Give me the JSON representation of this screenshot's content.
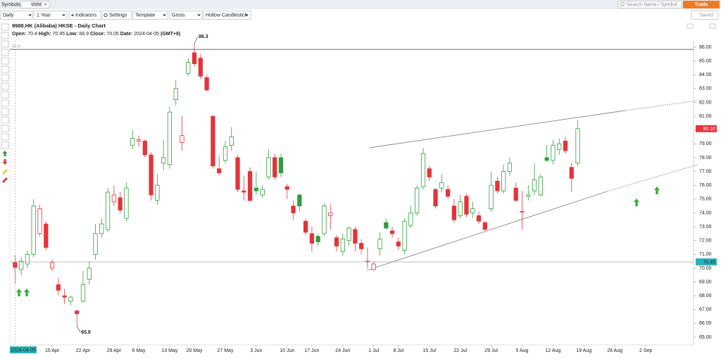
{
  "toolbar": {
    "symbols_label": "Symbols:",
    "symbol": "9988",
    "search_placeholder": "Search Name / Symbol",
    "trade": "Trade",
    "interval": "Daily",
    "range": "1 Year",
    "indicators": "Indicators",
    "settings": "Settings",
    "template": "Template",
    "scale": "Gross",
    "chart_style": "Hollow Candlestick",
    "saved": "Saved"
  },
  "chart_data": {
    "type": "candlestick",
    "title": "9988.HK (Alibaba) HKSE - Daily Chart",
    "info": [
      {
        "label": "Open:",
        "value": 70.4
      },
      {
        "label": "High:",
        "value": 70.95
      },
      {
        "label": "Low:",
        "value": 68.9
      },
      {
        "label": "Close:",
        "value": 70.05
      }
    ],
    "date_label": "Date:",
    "date": "2024-04-05",
    "timezone": "(GMT+8)",
    "categories": [
      null,
      null,
      null,
      null,
      null,
      null,
      "15 Apr",
      null,
      null,
      null,
      null,
      "22 Apr",
      null,
      null,
      null,
      null,
      "29 Apr",
      null,
      null,
      null,
      "6 May",
      null,
      null,
      null,
      null,
      "13 May",
      null,
      null,
      null,
      "20 May",
      null,
      null,
      null,
      null,
      "27 May",
      null,
      null,
      null,
      null,
      "3 Jun",
      null,
      null,
      null,
      null,
      "10 Jun",
      null,
      null,
      null,
      "17 Jun",
      null,
      null,
      null,
      null,
      "24 Jun",
      null,
      null,
      null,
      null,
      "1 Jul",
      null,
      null,
      null,
      "8 Jul",
      null,
      null,
      null,
      null,
      "15 Jul",
      null,
      null,
      null,
      null,
      "22 Jul",
      null,
      null,
      null,
      null,
      "29 Jul",
      null,
      null,
      null,
      null,
      "5 Aug",
      null,
      null,
      null,
      null,
      "12 Aug",
      null,
      null,
      null,
      null,
      "19 Aug",
      null,
      null,
      null,
      null,
      "26 Aug",
      null,
      null,
      null,
      null,
      "2 Sep",
      null,
      null,
      null,
      null,
      null,
      null,
      null
    ],
    "open": [
      70.4,
      69.9,
      70.3,
      71.0,
      72.5,
      73.2,
      70.0,
      68.8,
      68.0,
      67.6,
      66.9,
      67.6,
      69.2,
      71.0,
      72.5,
      72.8,
      74.8,
      75.1,
      73.6,
      78.9,
      79.2,
      79.2,
      78.2,
      74.9,
      77.6,
      77.5,
      82.2,
      79.1,
      84.1,
      85.6,
      85.2,
      83.8,
      81.0,
      77.2,
      77.8,
      78.9,
      78.0,
      75.6,
      77.0,
      75.8,
      75.3,
      76.6,
      78.0,
      78.0,
      75.9,
      74.5,
      75.3,
      73.4,
      72.5,
      72.3,
      72.5,
      73.8,
      72.2,
      71.2,
      72.0,
      72.8,
      71.8,
      70.5,
      69.9,
      71.4,
      73.3,
      72.7,
      71.9,
      71.3,
      73.1,
      74.0,
      75.9,
      77.2,
      75.7,
      75.8,
      75.7,
      74.5,
      73.8,
      75.2,
      74.0,
      73.8,
      73.3,
      74.3,
      76.3,
      75.6,
      77.0,
      75.8,
      74.1,
      75.2,
      75.6,
      75.3,
      78.0,
      77.8,
      78.6,
      79.2,
      77.3,
      77.6,
      null,
      null,
      null,
      null,
      null,
      null,
      null,
      null,
      null,
      null,
      null,
      null,
      null,
      null,
      null,
      null,
      null,
      null
    ],
    "high": [
      70.95,
      70.8,
      71.3,
      75.0,
      74.6,
      73.4,
      70.6,
      69.3,
      68.5,
      68.0,
      67.0,
      69.8,
      70.5,
      73.2,
      73.6,
      75.8,
      76.0,
      75.5,
      76.2,
      80.0,
      79.6,
      79.3,
      78.4,
      76.8,
      79.3,
      81.7,
      83.6,
      81.0,
      85.2,
      86.3,
      85.5,
      84.0,
      81.0,
      78.1,
      79.2,
      80.2,
      78.2,
      76.7,
      77.3,
      77.0,
      76.0,
      78.6,
      78.3,
      78.3,
      76.1,
      74.9,
      75.4,
      73.6,
      73.0,
      72.5,
      74.7,
      74.6,
      72.4,
      72.5,
      73.0,
      73.0,
      72.1,
      71.5,
      70.5,
      72.6,
      73.6,
      73.0,
      72.2,
      73.6,
      74.5,
      76.0,
      78.7,
      77.4,
      75.8,
      76.8,
      76.0,
      75.0,
      75.3,
      75.4,
      74.8,
      74.1,
      73.4,
      77.0,
      76.6,
      77.5,
      78.0,
      76.2,
      75.6,
      76.0,
      77.6,
      76.8,
      78.9,
      79.3,
      79.4,
      79.5,
      77.6,
      80.7,
      null,
      null,
      null,
      null,
      null,
      null,
      null,
      null,
      null,
      null,
      null,
      null,
      null,
      null,
      null,
      null,
      null,
      null
    ],
    "low": [
      68.9,
      69.5,
      70.0,
      70.8,
      72.3,
      71.3,
      69.8,
      68.0,
      67.4,
      67.3,
      65.8,
      67.5,
      68.8,
      70.6,
      72.2,
      72.6,
      74.5,
      74.0,
      73.4,
      78.6,
      78.8,
      78.0,
      74.9,
      74.6,
      77.1,
      77.2,
      81.8,
      78.5,
      83.9,
      84.6,
      83.7,
      82.8,
      77.2,
      76.7,
      77.6,
      78.5,
      75.5,
      74.9,
      74.8,
      75.3,
      75.1,
      76.4,
      76.4,
      76.6,
      75.0,
      73.5,
      74.1,
      72.4,
      71.2,
      71.6,
      72.3,
      72.8,
      71.2,
      70.9,
      71.6,
      71.2,
      71.0,
      70.0,
      69.8,
      70.9,
      72.8,
      72.2,
      71.3,
      71.0,
      72.9,
      73.8,
      75.7,
      76.3,
      74.3,
      75.5,
      75.0,
      73.3,
      73.6,
      73.7,
      73.6,
      73.2,
      72.7,
      74.1,
      75.4,
      75.4,
      76.7,
      74.8,
      72.8,
      74.9,
      75.3,
      75.2,
      77.7,
      77.5,
      78.2,
      78.3,
      75.5,
      77.4,
      null,
      null,
      null,
      null,
      null,
      null,
      null,
      null,
      null,
      null,
      null,
      null,
      null,
      null,
      null,
      null,
      null,
      null
    ],
    "close": [
      70.05,
      70.5,
      71.0,
      74.5,
      74.3,
      71.5,
      70.4,
      68.4,
      67.9,
      67.9,
      66.7,
      68.8,
      70.0,
      72.5,
      73.2,
      75.5,
      75.3,
      74.2,
      75.8,
      79.4,
      79.3,
      78.2,
      75.3,
      76.0,
      78.0,
      81.3,
      83.0,
      79.6,
      84.9,
      84.8,
      83.9,
      82.9,
      77.4,
      76.9,
      78.8,
      79.5,
      75.7,
      75.5,
      74.9,
      75.6,
      75.7,
      78.0,
      76.6,
      76.9,
      75.7,
      74.0,
      74.5,
      72.6,
      71.8,
      71.9,
      74.5,
      74.0,
      71.6,
      72.1,
      72.9,
      71.8,
      71.4,
      70.5,
      70.3,
      72.1,
      72.9,
      72.5,
      71.6,
      73.4,
      74.0,
      75.8,
      78.3,
      76.6,
      74.5,
      76.2,
      75.2,
      73.5,
      74.8,
      73.9,
      74.3,
      73.4,
      72.8,
      76.0,
      75.6,
      77.0,
      77.6,
      74.9,
      74.1,
      75.3,
      76.4,
      76.6,
      77.8,
      78.9,
      79.0,
      78.5,
      76.5,
      80.1,
      null,
      null,
      null,
      null,
      null,
      null,
      null,
      null,
      null,
      null,
      null,
      null,
      null,
      null,
      null,
      null,
      null,
      null
    ],
    "up_color": "#2f9e3c",
    "down_color": "#e5333b",
    "ylim": [
      64.44,
      86.46
    ],
    "yticks": [
      {
        "value": 65,
        "label": "65.00"
      },
      {
        "value": 66,
        "label": "66.00"
      },
      {
        "value": 67,
        "label": "67.00"
      },
      {
        "value": 68,
        "label": "68.00"
      },
      {
        "value": 69,
        "label": "69.00"
      },
      {
        "value": 70,
        "label": "70.00"
      },
      {
        "value": 71,
        "label": "71.00"
      },
      {
        "value": 72,
        "label": "72.00"
      },
      {
        "value": 73,
        "label": "73.00"
      },
      {
        "value": 74,
        "label": "74.00"
      },
      {
        "value": 75,
        "label": "75.00"
      },
      {
        "value": 76,
        "label": "76.00"
      },
      {
        "value": 77,
        "label": "77.00"
      },
      {
        "value": 78,
        "label": "78.00"
      },
      {
        "value": 79,
        "label": "79.00"
      },
      {
        "value": 80,
        "label": "80.00"
      },
      {
        "value": 81,
        "label": "81.00"
      },
      {
        "value": 82,
        "label": "82.00"
      },
      {
        "value": 83,
        "label": "83.00"
      },
      {
        "value": 84,
        "label": "84.00"
      },
      {
        "value": 85,
        "label": "85.00"
      },
      {
        "value": 86,
        "label": "86.00"
      }
    ],
    "grid": false,
    "extreme_labels": [
      86.3,
      65.8
    ],
    "horizontal_line": 85.84,
    "crosshair": {
      "value": 70.45,
      "date": "2024-04-05",
      "color": "#2bb3bb"
    },
    "last_price": {
      "value": 80.1,
      "label": "80.10",
      "color": "#e5333b"
    }
  }
}
